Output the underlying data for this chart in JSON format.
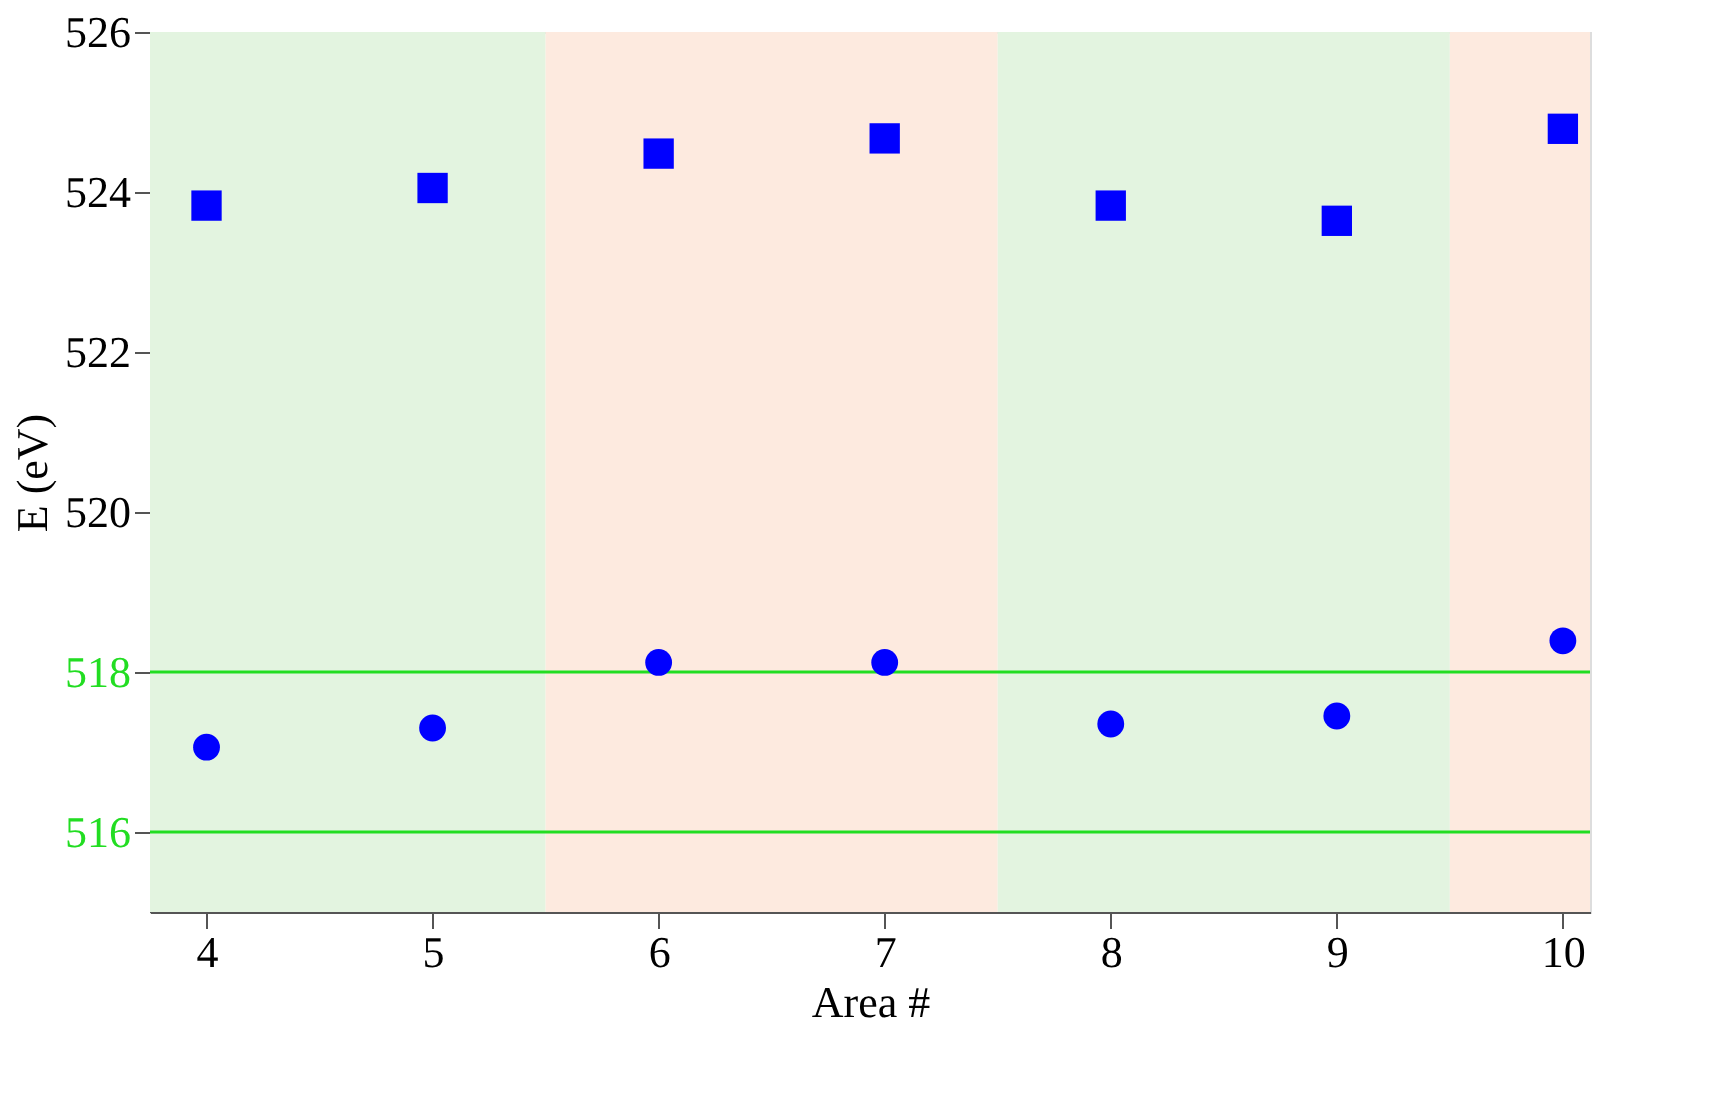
{
  "chart_data": {
    "type": "scatter",
    "xlabel": "Area #",
    "ylabel": "E (eV)",
    "x": [
      4,
      5,
      6,
      7,
      8,
      9,
      10
    ],
    "series": [
      {
        "color": "#0000ff",
        "marker": "square",
        "values": [
          523.83,
          524.05,
          524.48,
          524.67,
          523.83,
          523.64,
          524.79
        ]
      },
      {
        "color": "#0000ff",
        "marker": "circle",
        "values": [
          517.06,
          517.3,
          518.12,
          518.12,
          517.35,
          517.45,
          518.39
        ]
      }
    ],
    "xlim": [
      3.75,
      10.12
    ],
    "xticks": [
      4,
      5,
      6,
      7,
      8,
      9,
      10
    ],
    "ylim": [
      515,
      526
    ],
    "yticks": [
      516,
      518,
      520,
      522,
      524,
      526
    ],
    "ref_lines": [
      {
        "axis": "y",
        "value": 516,
        "color": "#22dd22"
      },
      {
        "axis": "y",
        "value": 518,
        "color": "#22dd22"
      }
    ],
    "bands": [
      {
        "axis": "x",
        "from": 3.75,
        "to": 5.5,
        "color": "#e3f4e0"
      },
      {
        "axis": "x",
        "from": 5.5,
        "to": 7.5,
        "color": "#fdeadf"
      },
      {
        "axis": "x",
        "from": 7.5,
        "to": 9.5,
        "color": "#e3f4e0"
      },
      {
        "axis": "x",
        "from": 9.5,
        "to": 10.12,
        "color": "#fdeadf"
      }
    ],
    "grid": false
  }
}
